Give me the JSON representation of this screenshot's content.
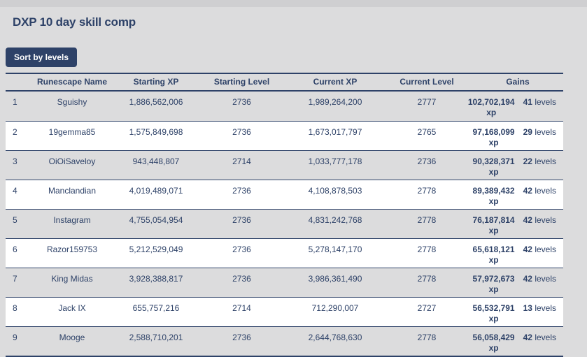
{
  "page": {
    "title": "DXP 10 day skill comp",
    "sort_button_label": "Sort by levels"
  },
  "colors": {
    "accent_navy": "#2e4268",
    "background": "#dcdcdd",
    "row_alternate": "#ffffff"
  },
  "table": {
    "columns": [
      "Runescape Name",
      "Starting XP",
      "Starting Level",
      "Current XP",
      "Current Level",
      "Gains"
    ],
    "xp_suffix": "xp",
    "levels_suffix": "levels",
    "rows": [
      {
        "rank": "1",
        "name": "Sguishy",
        "starting_xp": "1,886,562,006",
        "starting_level": "2736",
        "current_xp": "1,989,264,200",
        "current_level": "2777",
        "gain_xp": "102,702,194",
        "gain_levels": "41"
      },
      {
        "rank": "2",
        "name": "19gemma85",
        "starting_xp": "1,575,849,698",
        "starting_level": "2736",
        "current_xp": "1,673,017,797",
        "current_level": "2765",
        "gain_xp": "97,168,099",
        "gain_levels": "29"
      },
      {
        "rank": "3",
        "name": "OiOiSaveloy",
        "starting_xp": "943,448,807",
        "starting_level": "2714",
        "current_xp": "1,033,777,178",
        "current_level": "2736",
        "gain_xp": "90,328,371",
        "gain_levels": "22"
      },
      {
        "rank": "4",
        "name": "Manclandian",
        "starting_xp": "4,019,489,071",
        "starting_level": "2736",
        "current_xp": "4,108,878,503",
        "current_level": "2778",
        "gain_xp": "89,389,432",
        "gain_levels": "42"
      },
      {
        "rank": "5",
        "name": "Instagram",
        "starting_xp": "4,755,054,954",
        "starting_level": "2736",
        "current_xp": "4,831,242,768",
        "current_level": "2778",
        "gain_xp": "76,187,814",
        "gain_levels": "42"
      },
      {
        "rank": "6",
        "name": "Razor159753",
        "starting_xp": "5,212,529,049",
        "starting_level": "2736",
        "current_xp": "5,278,147,170",
        "current_level": "2778",
        "gain_xp": "65,618,121",
        "gain_levels": "42"
      },
      {
        "rank": "7",
        "name": "King Midas",
        "starting_xp": "3,928,388,817",
        "starting_level": "2736",
        "current_xp": "3,986,361,490",
        "current_level": "2778",
        "gain_xp": "57,972,673",
        "gain_levels": "42"
      },
      {
        "rank": "8",
        "name": "Jack IX",
        "starting_xp": "655,757,216",
        "starting_level": "2714",
        "current_xp": "712,290,007",
        "current_level": "2727",
        "gain_xp": "56,532,791",
        "gain_levels": "13"
      },
      {
        "rank": "9",
        "name": "Mooge",
        "starting_xp": "2,588,710,201",
        "starting_level": "2736",
        "current_xp": "2,644,768,630",
        "current_level": "2778",
        "gain_xp": "56,058,429",
        "gain_levels": "42"
      }
    ]
  }
}
